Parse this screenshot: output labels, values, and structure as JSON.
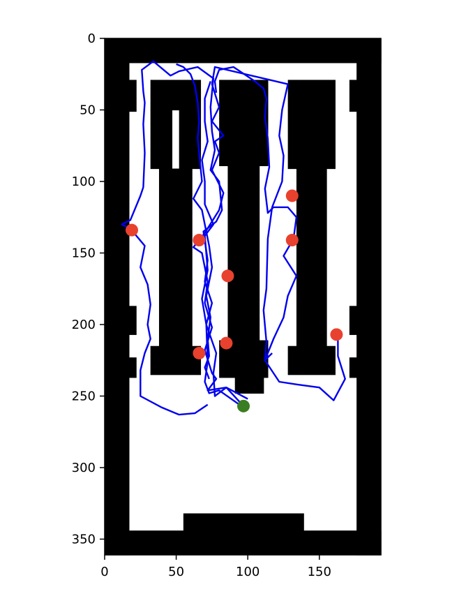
{
  "chart_data": {
    "type": "scatter",
    "title": "",
    "xlabel": "",
    "ylabel": "",
    "xlim": [
      0,
      193
    ],
    "ylim": [
      361,
      0
    ],
    "x_ticks": [
      0,
      50,
      100,
      150
    ],
    "y_ticks": [
      0,
      50,
      100,
      150,
      200,
      250,
      300,
      350
    ],
    "x_tick_labels": [
      "0",
      "50",
      "100",
      "150"
    ],
    "y_tick_labels": [
      "0",
      "50",
      "100",
      "150",
      "200",
      "250",
      "300",
      "350"
    ],
    "grid": false,
    "legend": "none",
    "map": {
      "shape": [
        361,
        193
      ],
      "obstacles": [
        [
          0,
          0,
          193,
          17
        ],
        [
          0,
          344,
          193,
          361
        ],
        [
          0,
          0,
          17,
          361
        ],
        [
          176,
          0,
          193,
          361
        ],
        [
          17,
          29,
          22,
          51
        ],
        [
          171,
          29,
          176,
          51
        ],
        [
          17,
          187,
          22,
          207
        ],
        [
          171,
          187,
          176,
          207
        ],
        [
          17,
          223,
          22,
          237
        ],
        [
          171,
          223,
          176,
          237
        ],
        [
          55,
          332,
          139,
          344
        ],
        [
          32,
          29,
          67,
          50
        ],
        [
          32,
          50,
          47,
          91
        ],
        [
          52,
          50,
          67,
          91
        ],
        [
          38,
          91,
          61,
          215
        ],
        [
          32,
          215,
          67,
          235
        ],
        [
          80,
          29,
          114,
          50
        ],
        [
          80,
          50,
          86,
          89
        ],
        [
          108,
          50,
          114,
          89
        ],
        [
          86,
          50,
          108,
          211
        ],
        [
          80,
          211,
          114,
          237
        ],
        [
          91,
          237,
          111,
          248
        ],
        [
          128,
          29,
          161,
          50
        ],
        [
          128,
          50,
          134,
          91
        ],
        [
          155,
          50,
          161,
          91
        ],
        [
          134,
          50,
          155,
          215
        ],
        [
          128,
          215,
          161,
          235
        ]
      ]
    },
    "series": [
      {
        "type": "line",
        "color": "#0000ee",
        "points": [
          [
            97,
            257
          ],
          [
            85,
            244
          ],
          [
            72,
            246
          ],
          [
            78,
            238
          ],
          [
            75,
            234
          ],
          [
            70,
            218
          ],
          [
            75,
            202
          ],
          [
            70,
            185
          ],
          [
            72,
            170
          ],
          [
            68,
            150
          ],
          [
            62,
            146
          ],
          [
            70,
            136
          ],
          [
            80,
            120
          ],
          [
            83,
            108
          ],
          [
            75,
            92
          ],
          [
            80,
            80
          ],
          [
            77,
            72
          ],
          [
            83,
            68
          ],
          [
            75,
            58
          ],
          [
            80,
            48
          ],
          [
            75,
            32
          ],
          [
            77,
            20
          ],
          [
            128,
            32
          ],
          [
            124,
            50
          ],
          [
            122,
            68
          ],
          [
            125,
            82
          ],
          [
            124,
            100
          ],
          [
            117,
            118
          ],
          [
            114,
            140
          ],
          [
            113,
            175
          ],
          [
            111,
            190
          ],
          [
            113,
            212
          ],
          [
            112,
            225
          ],
          [
            122,
            240
          ],
          [
            135,
            242
          ],
          [
            150,
            244
          ],
          [
            160,
            253
          ],
          [
            168,
            238
          ],
          [
            163,
            222
          ],
          [
            163,
            210
          ]
        ]
      },
      {
        "type": "line",
        "color": "#0000ee",
        "points": [
          [
            100,
            252
          ],
          [
            85,
            244
          ],
          [
            77,
            250
          ],
          [
            76,
            234
          ],
          [
            78,
            220
          ],
          [
            71,
            200
          ],
          [
            75,
            185
          ],
          [
            70,
            170
          ],
          [
            72,
            155
          ],
          [
            69,
            135
          ],
          [
            78,
            128
          ],
          [
            82,
            120
          ],
          [
            80,
            100
          ],
          [
            74,
            92
          ],
          [
            77,
            78
          ],
          [
            75,
            65
          ],
          [
            74,
            48
          ],
          [
            76,
            28
          ],
          [
            65,
            20
          ],
          [
            52,
            23
          ],
          [
            46,
            26
          ],
          [
            34,
            16
          ],
          [
            26,
            22
          ],
          [
            27,
            37
          ],
          [
            28,
            45
          ],
          [
            27,
            60
          ],
          [
            28,
            80
          ],
          [
            27,
            104
          ],
          [
            25,
            110
          ],
          [
            18,
            127
          ],
          [
            12,
            130
          ],
          [
            18,
            133
          ],
          [
            28,
            145
          ],
          [
            25,
            160
          ],
          [
            30,
            172
          ],
          [
            32,
            186
          ],
          [
            30,
            200
          ],
          [
            32,
            210
          ],
          [
            28,
            220
          ],
          [
            25,
            232
          ],
          [
            25,
            250
          ],
          [
            40,
            258
          ],
          [
            52,
            263
          ],
          [
            63,
            262
          ],
          [
            72,
            256
          ]
        ]
      },
      {
        "type": "line",
        "color": "#0000ee",
        "points": [
          [
            97,
            258
          ],
          [
            80,
            246
          ],
          [
            73,
            248
          ],
          [
            70,
            240
          ],
          [
            72,
            226
          ],
          [
            71,
            200
          ],
          [
            68,
            182
          ],
          [
            72,
            162
          ],
          [
            70,
            138
          ],
          [
            76,
            130
          ],
          [
            70,
            116
          ],
          [
            70,
            100
          ],
          [
            68,
            85
          ],
          [
            72,
            72
          ],
          [
            70,
            58
          ],
          [
            70,
            42
          ],
          [
            74,
            30
          ]
        ]
      },
      {
        "type": "line",
        "color": "#0000ee",
        "points": [
          [
            117,
            220
          ],
          [
            112,
            225
          ],
          [
            118,
            210
          ],
          [
            125,
            195
          ],
          [
            128,
            180
          ],
          [
            134,
            166
          ],
          [
            125,
            152
          ],
          [
            132,
            140
          ],
          [
            134,
            125
          ],
          [
            128,
            118
          ],
          [
            118,
            118
          ],
          [
            114,
            122
          ],
          [
            112,
            105
          ],
          [
            115,
            90
          ],
          [
            114,
            70
          ],
          [
            112,
            55
          ],
          [
            113,
            42
          ],
          [
            111,
            35
          ],
          [
            105,
            30
          ],
          [
            90,
            20
          ],
          [
            80,
            22
          ],
          [
            77,
            30
          ],
          [
            78,
            38
          ]
        ]
      },
      {
        "type": "line",
        "color": "#0000ee",
        "points": [
          [
            73,
            238
          ],
          [
            70,
            230
          ],
          [
            73,
            222
          ],
          [
            72,
            210
          ],
          [
            74,
            195
          ],
          [
            71,
            180
          ],
          [
            75,
            160
          ],
          [
            73,
            145
          ],
          [
            70,
            130
          ],
          [
            68,
            120
          ],
          [
            62,
            112
          ],
          [
            68,
            100
          ],
          [
            66,
            80
          ],
          [
            65,
            70
          ],
          [
            66,
            58
          ],
          [
            65,
            45
          ],
          [
            63,
            33
          ],
          [
            60,
            25
          ],
          [
            55,
            20
          ],
          [
            50,
            18
          ]
        ]
      }
    ],
    "markers": [
      {
        "name": "goals",
        "color": "#e8412e",
        "points": [
          [
            131,
            110
          ],
          [
            19,
            134
          ],
          [
            66,
            141
          ],
          [
            131,
            141
          ],
          [
            86,
            166
          ],
          [
            162,
            207
          ],
          [
            85,
            213
          ],
          [
            66,
            220
          ]
        ]
      },
      {
        "name": "start",
        "color": "#3a7d22",
        "points": [
          [
            97,
            257
          ]
        ]
      }
    ]
  }
}
